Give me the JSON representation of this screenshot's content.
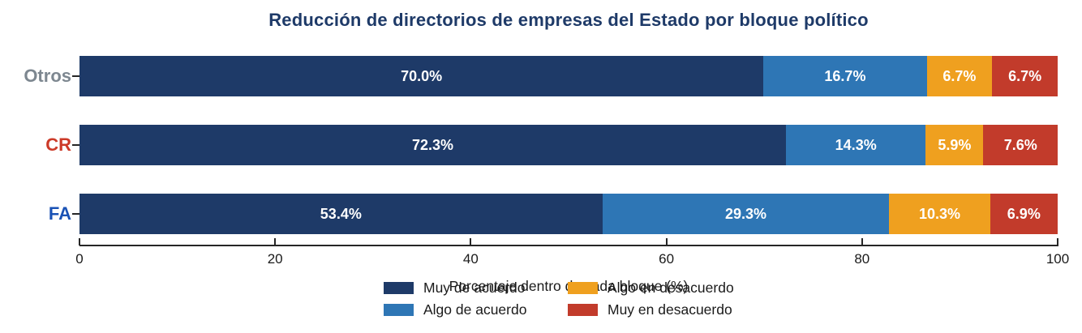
{
  "title": "Reducción de directorios de empresas del Estado por bloque político",
  "title_color": "#1e3a68",
  "chart_data": {
    "type": "bar",
    "orientation": "horizontal",
    "stacked": true,
    "title": "Reducción de directorios de empresas del Estado por bloque político",
    "xlabel": "Porcentaje dentro de cada bloque (%)",
    "ylabel": "",
    "xlim": [
      0,
      100
    ],
    "x_ticks": [
      0,
      20,
      40,
      60,
      80,
      100
    ],
    "grid": false,
    "legend_position": "bottom-center, 2 columns, no frame, overlapping xlabel",
    "value_label_format": "one decimal + %",
    "categories": [
      "Otros",
      "CR",
      "FA"
    ],
    "category_label_colors": [
      "#7d8790",
      "#cc3a28",
      "#1a52b5"
    ],
    "series": [
      {
        "name": "Muy de acuerdo",
        "color": "#1e3a68",
        "values": [
          70.0,
          72.3,
          53.4
        ]
      },
      {
        "name": "Algo de acuerdo",
        "color": "#2e76b5",
        "values": [
          16.7,
          14.3,
          29.3
        ]
      },
      {
        "name": "Algo en desacuerdo",
        "color": "#efa01f",
        "values": [
          6.7,
          5.9,
          10.3
        ]
      },
      {
        "name": "Muy en desacuerdo",
        "color": "#c23b2b",
        "values": [
          6.7,
          7.6,
          6.9
        ]
      }
    ],
    "bar_value_labels": [
      [
        "70.0%",
        "16.7%",
        "6.7%",
        "6.7%"
      ],
      [
        "72.3%",
        "14.3%",
        "5.9%",
        "7.6%"
      ],
      [
        "53.4%",
        "29.3%",
        "10.3%",
        "6.9%"
      ]
    ],
    "axis_color": "#262626"
  }
}
